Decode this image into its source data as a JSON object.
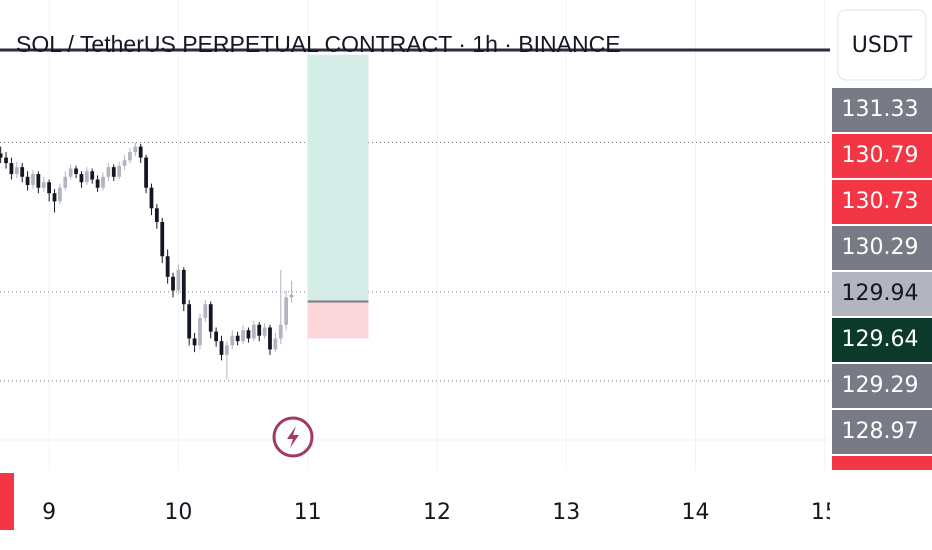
{
  "chart_data": {
    "type": "candlestick",
    "title": "SOL / TetherUS PERPETUAL CONTRACT · 1h · BINANCE",
    "currency": "USDT",
    "x": [
      8.625,
      8.6667,
      8.7083,
      8.75,
      8.7917,
      8.8333,
      8.875,
      8.9167,
      8.9583,
      9,
      9.0417,
      9.0833,
      9.125,
      9.1667,
      9.2083,
      9.25,
      9.2917,
      9.3333,
      9.375,
      9.4167,
      9.4583,
      9.5,
      9.5417,
      9.5833,
      9.625,
      9.6667,
      9.7083,
      9.75,
      9.7917,
      9.8333,
      9.875,
      9.9167,
      9.9583,
      10,
      10.0417,
      10.0833,
      10.125,
      10.1667,
      10.2083,
      10.25,
      10.2917,
      10.3333,
      10.375,
      10.4167,
      10.4583,
      10.5,
      10.5417,
      10.5833,
      10.625,
      10.6667,
      10.7083,
      10.75,
      10.7917,
      10.8333,
      10.875
    ],
    "open": [
      130.95,
      130.92,
      130.88,
      130.8,
      130.85,
      130.78,
      130.72,
      130.8,
      130.7,
      130.74,
      130.66,
      130.6,
      130.7,
      130.78,
      130.84,
      130.8,
      130.74,
      130.82,
      130.76,
      130.7,
      130.78,
      130.85,
      130.78,
      130.86,
      130.9,
      130.96,
      131.0,
      130.92,
      130.7,
      130.55,
      130.45,
      130.2,
      130.05,
      129.95,
      130.1,
      129.85,
      129.6,
      129.55,
      129.75,
      129.85,
      129.65,
      129.58,
      129.48,
      129.55,
      129.62,
      129.58,
      129.66,
      129.6,
      129.7,
      129.62,
      129.68,
      129.52,
      129.6,
      129.7,
      129.9
    ],
    "high": [
      131.0,
      130.96,
      130.92,
      130.89,
      130.88,
      130.82,
      130.83,
      130.82,
      130.78,
      130.76,
      130.69,
      130.73,
      130.82,
      130.87,
      130.86,
      130.82,
      130.85,
      130.84,
      130.79,
      130.81,
      130.88,
      130.87,
      130.89,
      130.94,
      130.99,
      131.03,
      131.02,
      130.94,
      130.73,
      130.58,
      130.48,
      130.25,
      130.08,
      130.14,
      130.12,
      129.88,
      129.64,
      129.78,
      129.88,
      129.87,
      129.68,
      129.62,
      129.58,
      129.66,
      129.65,
      129.7,
      129.68,
      129.73,
      129.72,
      129.71,
      129.7,
      129.64,
      130.1,
      129.95,
      130.02
    ],
    "low": [
      130.88,
      130.84,
      130.76,
      130.77,
      130.74,
      130.68,
      130.69,
      130.66,
      130.67,
      130.6,
      130.52,
      130.58,
      130.68,
      130.76,
      130.77,
      130.7,
      130.72,
      130.73,
      130.67,
      130.68,
      130.75,
      130.75,
      130.76,
      130.83,
      130.88,
      130.93,
      130.88,
      130.66,
      130.5,
      130.4,
      130.15,
      130.0,
      129.9,
      129.92,
      129.8,
      129.55,
      129.5,
      129.52,
      129.72,
      129.6,
      129.54,
      129.44,
      129.3,
      129.52,
      129.55,
      129.56,
      129.57,
      129.58,
      129.58,
      129.6,
      129.48,
      129.5,
      129.56,
      129.66,
      129.86
    ],
    "close": [
      130.92,
      130.88,
      130.8,
      130.85,
      130.78,
      130.72,
      130.8,
      130.7,
      130.74,
      130.66,
      130.6,
      130.7,
      130.78,
      130.84,
      130.8,
      130.74,
      130.82,
      130.76,
      130.7,
      130.78,
      130.85,
      130.78,
      130.86,
      130.9,
      130.96,
      131.0,
      130.92,
      130.7,
      130.55,
      130.45,
      130.2,
      130.05,
      129.95,
      130.1,
      129.85,
      129.6,
      129.55,
      129.75,
      129.85,
      129.65,
      129.58,
      129.48,
      129.55,
      129.62,
      129.58,
      129.66,
      129.6,
      129.7,
      129.62,
      129.68,
      129.52,
      129.6,
      129.7,
      129.9,
      129.92
    ],
    "up_color": "#b2b5be",
    "down_color": "#131722",
    "xlim": [
      8.62,
      15.04
    ],
    "xticks": [
      9,
      10,
      11,
      12,
      13,
      14,
      15
    ],
    "ylim": [
      128.64,
      132.07
    ],
    "price_lines": [
      131.03,
      129.94,
      129.29
    ],
    "position": {
      "x": [
        11,
        11.47
      ],
      "target": 131.67,
      "entry": 129.87,
      "stop": 129.6,
      "profit_color": "#d4ede6",
      "loss_color": "#fbd7dc"
    },
    "price_labels": [
      {
        "value": 131.33,
        "label": "131.33",
        "color": "#787b86",
        "text_color": "#ffffff"
      },
      {
        "value": 130.79,
        "label": "130.79",
        "color": "#f23645",
        "text_color": "#ffffff"
      },
      {
        "value": 130.73,
        "label": "130.73",
        "color": "#f23645",
        "text_color": "#ffffff"
      },
      {
        "value": 130.29,
        "label": "130.29",
        "color": "#787b86",
        "text_color": "#ffffff"
      },
      {
        "value": 129.94,
        "label": "129.94",
        "color": "#b2b5be",
        "text_color": "#131722"
      },
      {
        "value": 129.64,
        "label": "129.64",
        "color": "#0b3a2c",
        "text_color": "#ffffff"
      },
      {
        "value": 129.29,
        "label": "129.29",
        "color": "#787b86",
        "text_color": "#ffffff"
      },
      {
        "value": 128.97,
        "label": "128.97",
        "color": "#787b86",
        "text_color": "#ffffff"
      }
    ]
  }
}
